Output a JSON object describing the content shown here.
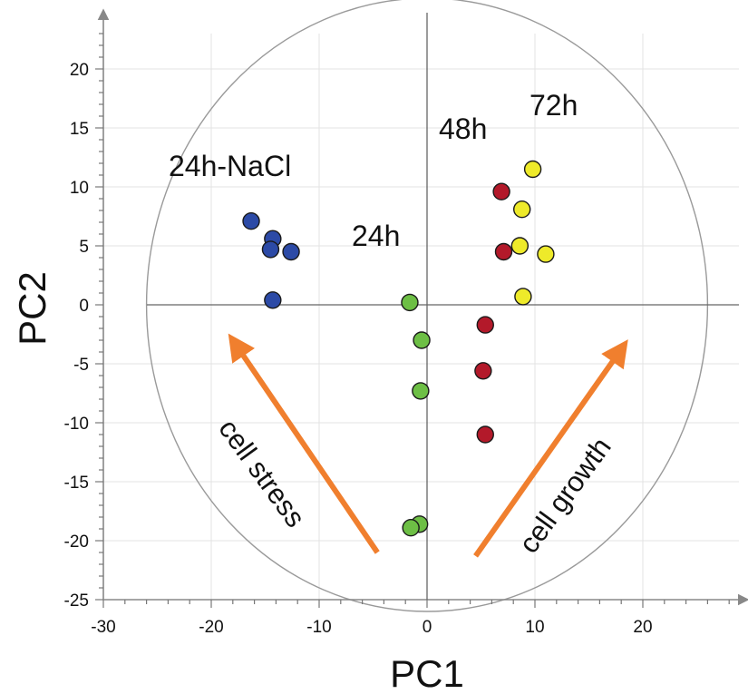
{
  "chart_data": {
    "type": "scatter",
    "xlabel": "PC1",
    "ylabel": "PC2",
    "xlim": [
      -30,
      30
    ],
    "ylim": [
      -25,
      25
    ],
    "xticks": [
      -30,
      -20,
      -10,
      0,
      10,
      20
    ],
    "yticks": [
      -25,
      -20,
      -15,
      -10,
      -5,
      0,
      5,
      10,
      15,
      20
    ],
    "grid": true,
    "confidence_circle": {
      "center": [
        0,
        0
      ],
      "radius": 26
    },
    "series": [
      {
        "name": "24h-NaCl",
        "color": "#2c4aa6",
        "points": [
          [
            -16.3,
            7.1
          ],
          [
            -14.3,
            5.6
          ],
          [
            -14.5,
            4.7
          ],
          [
            -12.6,
            4.5
          ],
          [
            -14.3,
            0.4
          ]
        ]
      },
      {
        "name": "24h",
        "color": "#6dbf45",
        "points": [
          [
            -1.6,
            0.2
          ],
          [
            -0.5,
            -3.0
          ],
          [
            -0.6,
            -7.3
          ],
          [
            -0.7,
            -18.6
          ],
          [
            -1.5,
            -18.9
          ]
        ]
      },
      {
        "name": "48h",
        "color": "#b3192a",
        "points": [
          [
            6.9,
            9.6
          ],
          [
            7.1,
            4.5
          ],
          [
            5.4,
            -1.7
          ],
          [
            5.2,
            -5.6
          ],
          [
            5.4,
            -11.0
          ]
        ]
      },
      {
        "name": "72h",
        "color": "#eeea2a",
        "points": [
          [
            9.8,
            11.5
          ],
          [
            8.8,
            8.1
          ],
          [
            8.6,
            5.0
          ],
          [
            11.0,
            4.3
          ],
          [
            8.9,
            0.7
          ]
        ]
      }
    ],
    "annotations": [
      {
        "text": "cell stress",
        "color": "#f07f2e",
        "from": [
          -4.6,
          -21.0
        ],
        "to": [
          -18.0,
          -3.0
        ]
      },
      {
        "text": "cell growth",
        "color": "#f07f2e",
        "from": [
          4.5,
          -21.3
        ],
        "to": [
          18.2,
          -3.5
        ]
      }
    ]
  }
}
